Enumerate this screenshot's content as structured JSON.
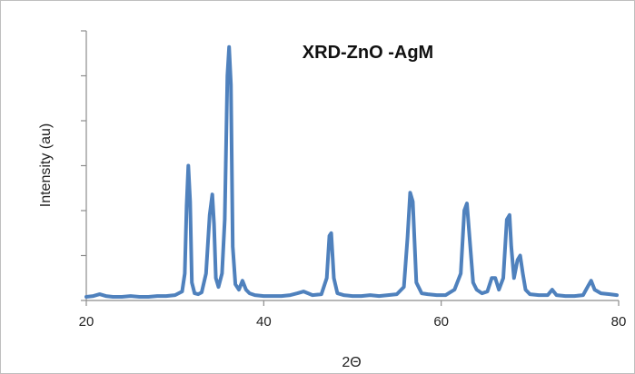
{
  "chart_data": {
    "type": "line",
    "title": "XRD-ZnO -AgM",
    "xlabel": "2Θ",
    "ylabel": "Intensity (au)",
    "xlim": [
      20,
      80
    ],
    "ylim": [
      0,
      300
    ],
    "xticks": [
      20,
      40,
      60,
      80
    ],
    "yticks": [
      0,
      50,
      100,
      150,
      200,
      250,
      300
    ],
    "show_y_tick_labels": false,
    "grid": false,
    "legend": "none",
    "colors": {
      "series": "#4f81bd",
      "axis": "#8c8c8c"
    },
    "series": [
      {
        "x": [
          20.0,
          20.8,
          21.5,
          22.2,
          23.0,
          24.0,
          25.0,
          26.0,
          27.0,
          28.0,
          29.0,
          30.0,
          30.8,
          31.1,
          31.3,
          31.5,
          31.7,
          31.9,
          32.2,
          32.6,
          33.0,
          33.5,
          33.9,
          34.2,
          34.4,
          34.6,
          34.9,
          35.3,
          35.6,
          35.9,
          36.1,
          36.3,
          36.5,
          36.8,
          37.2,
          37.6,
          38.0,
          38.4,
          39.0,
          40.0,
          41.0,
          42.0,
          43.0,
          43.8,
          44.5,
          45.5,
          46.5,
          47.1,
          47.4,
          47.6,
          47.9,
          48.3,
          49.0,
          50.0,
          51.0,
          52.0,
          53.0,
          54.0,
          55.0,
          55.8,
          56.2,
          56.5,
          56.8,
          57.2,
          57.8,
          58.5,
          59.5,
          60.5,
          61.5,
          62.2,
          62.6,
          62.9,
          63.2,
          63.6,
          64.0,
          64.6,
          65.2,
          65.7,
          66.1,
          66.5,
          67.0,
          67.4,
          67.7,
          67.9,
          68.2,
          68.6,
          68.9,
          69.2,
          69.5,
          70.0,
          71.0,
          72.0,
          72.5,
          73.0,
          74.0,
          75.0,
          76.0,
          76.5,
          76.9,
          77.3,
          78.0,
          79.0,
          79.8
        ],
        "y": [
          4,
          5,
          7,
          5,
          4,
          4,
          5,
          4,
          4,
          5,
          5,
          6,
          10,
          30,
          105,
          150,
          110,
          20,
          8,
          7,
          9,
          30,
          95,
          118,
          85,
          25,
          15,
          30,
          90,
          250,
          282,
          240,
          60,
          18,
          12,
          22,
          12,
          8,
          6,
          5,
          5,
          5,
          6,
          8,
          10,
          6,
          7,
          25,
          72,
          75,
          25,
          8,
          6,
          5,
          5,
          6,
          5,
          6,
          7,
          15,
          70,
          120,
          110,
          20,
          8,
          7,
          6,
          6,
          12,
          30,
          100,
          108,
          70,
          20,
          12,
          8,
          10,
          25,
          25,
          12,
          25,
          90,
          95,
          60,
          25,
          45,
          50,
          30,
          12,
          7,
          6,
          6,
          12,
          6,
          5,
          5,
          6,
          15,
          22,
          12,
          8,
          7,
          6
        ]
      }
    ]
  }
}
